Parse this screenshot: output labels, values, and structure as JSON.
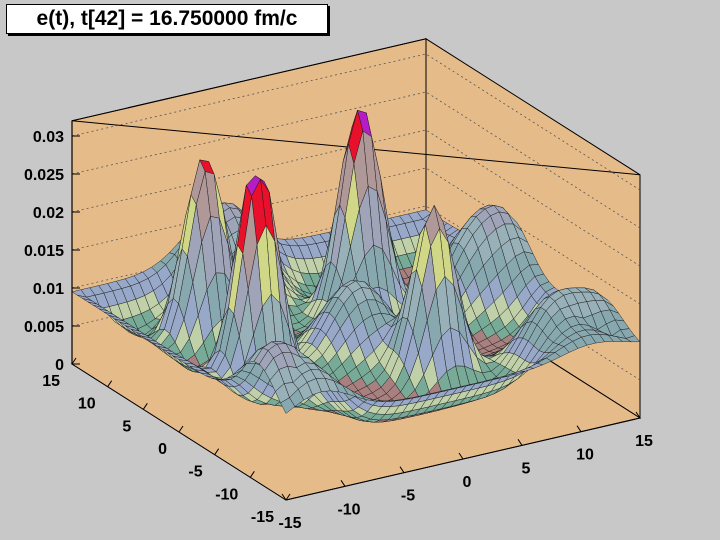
{
  "title": "e(t), t[42] = 16.750000 fm/c",
  "colors": {
    "canvas": "#c8c8c8",
    "frame": "#e6bb8a",
    "peak": "#e8102a",
    "peak_top": "#b41cc8"
  },
  "chart_data": {
    "type": "surface3d",
    "title": "e(t), t[42] = 16.750000 fm/c",
    "xlabel": "",
    "ylabel": "",
    "zlabel": "",
    "x_range": [
      -15,
      15
    ],
    "y_range": [
      -15,
      15
    ],
    "z_range": [
      0,
      0.032
    ],
    "x_ticks": [
      "-15",
      "-10",
      "-5",
      "0",
      "5",
      "10",
      "15"
    ],
    "y_ticks": [
      "-15",
      "-10",
      "-5",
      "0",
      "5",
      "10",
      "15"
    ],
    "z_ticks": [
      "0",
      "0.005",
      "0.01",
      "0.015",
      "0.02",
      "0.025",
      "0.03"
    ],
    "grid_z": true,
    "peaks": [
      {
        "x": -9,
        "y": -1,
        "height": 0.031
      },
      {
        "x": 4,
        "y": 6,
        "height": 0.029
      },
      {
        "x": -8,
        "y": 8,
        "height": 0.025
      },
      {
        "x": 3,
        "y": -6,
        "height": 0.023
      }
    ],
    "features": [
      {
        "x": -3,
        "y": 12,
        "height": 0.012
      },
      {
        "x": 12,
        "y": 3,
        "height": 0.012
      },
      {
        "x": 11,
        "y": -10,
        "height": 0.011
      },
      {
        "x": -12,
        "y": -11,
        "height": 0.012
      },
      {
        "x": 0,
        "y": 0,
        "height": 0.011
      }
    ]
  }
}
